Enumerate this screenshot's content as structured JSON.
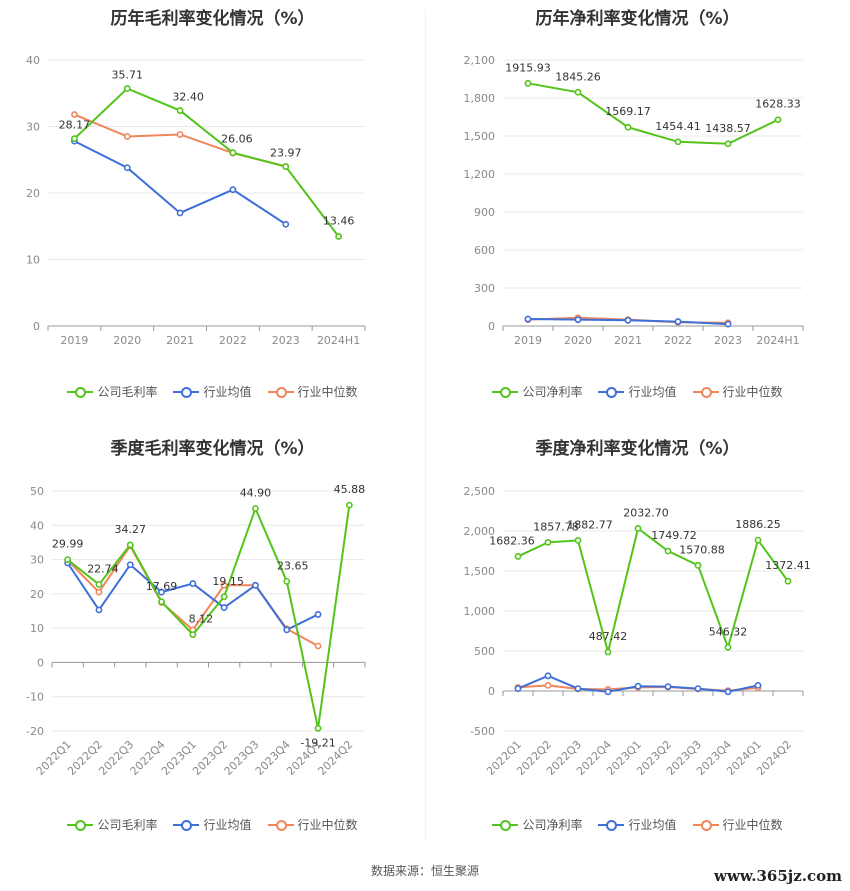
{
  "source": "数据来源：恒生聚源",
  "watermark": "www.365jz.com",
  "colors": {
    "company": "#52c41a",
    "avg": "#3f6fd8",
    "median": "#f0865a",
    "grid": "#e8e8e8",
    "axis": "#999999"
  },
  "chart_data": [
    {
      "type": "line",
      "title": "历年毛利率变化情况（%）",
      "categories": [
        "2019",
        "2020",
        "2021",
        "2022",
        "2023",
        "2024H1"
      ],
      "ylim": [
        0,
        40
      ],
      "yticks": [
        0,
        10,
        20,
        30,
        40
      ],
      "ytick_labels": [
        "0",
        "10",
        "20",
        "30",
        "40"
      ],
      "grid": true,
      "legend_position": "bottom",
      "series": [
        {
          "name": "公司毛利率",
          "color": "#52c41a",
          "values": [
            28.17,
            35.71,
            32.4,
            26.06,
            23.97,
            13.46
          ],
          "labels": [
            "28.17",
            "35.71",
            "32.40",
            "26.06",
            "23.97",
            "13.46"
          ]
        },
        {
          "name": "行业均值",
          "color": "#3f6fd8",
          "values": [
            27.8,
            23.8,
            17.0,
            20.5,
            15.3,
            null
          ]
        },
        {
          "name": "行业中位数",
          "color": "#f0865a",
          "values": [
            31.8,
            28.5,
            28.8,
            26.0,
            24.0,
            null
          ]
        }
      ]
    },
    {
      "type": "line",
      "title": "历年净利率变化情况（%）",
      "categories": [
        "2019",
        "2020",
        "2021",
        "2022",
        "2023",
        "2024H1"
      ],
      "ylim": [
        0,
        2100
      ],
      "yticks": [
        0,
        300,
        600,
        900,
        1200,
        1500,
        1800,
        2100
      ],
      "ytick_labels": [
        "0",
        "300",
        "600",
        "900",
        "1,200",
        "1,500",
        "1,800",
        "2,100"
      ],
      "grid": true,
      "legend_position": "bottom",
      "series": [
        {
          "name": "公司净利率",
          "color": "#52c41a",
          "values": [
            1915.93,
            1845.26,
            1569.17,
            1454.41,
            1438.57,
            1628.33
          ],
          "labels": [
            "1915.93",
            "1845.26",
            "1569.17",
            "1454.41",
            "1438.57",
            "1628.33"
          ]
        },
        {
          "name": "行业均值",
          "color": "#3f6fd8",
          "values": [
            55,
            50,
            45,
            35,
            15,
            null
          ]
        },
        {
          "name": "行业中位数",
          "color": "#f0865a",
          "values": [
            50,
            65,
            50,
            30,
            25,
            null
          ]
        }
      ]
    },
    {
      "type": "line",
      "title": "季度毛利率变化情况（%）",
      "categories": [
        "2022Q1",
        "2022Q2",
        "2022Q3",
        "2022Q4",
        "2023Q1",
        "2023Q2",
        "2023Q3",
        "2023Q4",
        "2024Q1",
        "2024Q2"
      ],
      "ylim": [
        -20,
        50
      ],
      "yticks": [
        -20,
        -10,
        0,
        10,
        20,
        30,
        40,
        50
      ],
      "ytick_labels": [
        "-20",
        "-10",
        "0",
        "10",
        "20",
        "30",
        "40",
        "50"
      ],
      "grid": true,
      "legend_position": "bottom",
      "series": [
        {
          "name": "公司毛利率",
          "color": "#52c41a",
          "values": [
            29.99,
            22.74,
            34.27,
            17.69,
            8.12,
            19.15,
            44.9,
            23.65,
            -19.21,
            45.88
          ],
          "labels": [
            "29.99",
            "22.74",
            "34.27",
            "17.69",
            "8.12",
            "19.15",
            "44.90",
            "23.65",
            "-19.21",
            "45.88"
          ]
        },
        {
          "name": "行业均值",
          "color": "#3f6fd8",
          "values": [
            29.0,
            15.3,
            28.5,
            20.5,
            23.0,
            16.0,
            22.5,
            9.5,
            14.0,
            null
          ]
        },
        {
          "name": "行业中位数",
          "color": "#f0865a",
          "values": [
            29.8,
            20.5,
            34.0,
            17.5,
            9.5,
            22.5,
            22.5,
            9.8,
            4.8,
            null
          ]
        }
      ]
    },
    {
      "type": "line",
      "title": "季度净利率变化情况（%）",
      "categories": [
        "2022Q1",
        "2022Q2",
        "2022Q3",
        "2022Q4",
        "2023Q1",
        "2023Q2",
        "2023Q3",
        "2023Q4",
        "2024Q1",
        "2024Q2"
      ],
      "ylim": [
        -500,
        2500
      ],
      "yticks": [
        -500,
        0,
        500,
        1000,
        1500,
        2000,
        2500
      ],
      "ytick_labels": [
        "-500",
        "0",
        "500",
        "1,000",
        "1,500",
        "2,000",
        "2,500"
      ],
      "grid": true,
      "legend_position": "bottom",
      "series": [
        {
          "name": "公司净利率",
          "color": "#52c41a",
          "values": [
            1682.36,
            1857.78,
            1882.77,
            487.42,
            2032.7,
            1749.72,
            1570.88,
            546.32,
            1886.25,
            1372.41
          ],
          "labels": [
            "1682.36",
            "1857.78",
            "1882.77",
            "487.42",
            "2032.70",
            "1749.72",
            "1570.88",
            "546.32",
            "1886.25",
            "1372.41"
          ]
        },
        {
          "name": "行业均值",
          "color": "#3f6fd8",
          "values": [
            30,
            190,
            30,
            -10,
            60,
            55,
            30,
            -10,
            70,
            null
          ]
        },
        {
          "name": "行业中位数",
          "color": "#f0865a",
          "values": [
            45,
            70,
            25,
            20,
            45,
            50,
            25,
            5,
            40,
            null
          ]
        }
      ]
    }
  ]
}
